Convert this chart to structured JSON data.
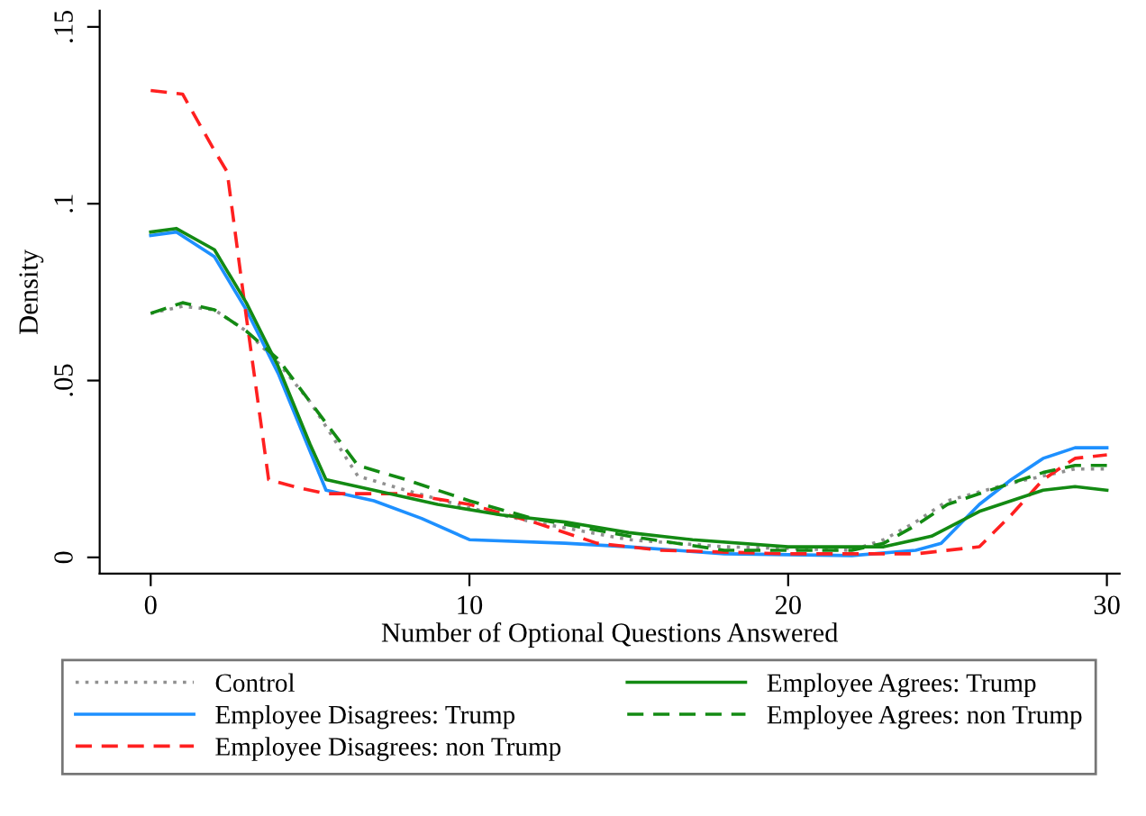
{
  "chart_data": {
    "type": "line",
    "xlabel": "Number of Optional Questions Answered",
    "ylabel": "Density",
    "xlim": [
      -1.6,
      30.4
    ],
    "ylim": [
      -0.0046,
      0.1546
    ],
    "xticks": [
      0,
      10,
      20,
      30
    ],
    "yticks": [
      {
        "value": 0,
        "label": "0"
      },
      {
        "value": 0.05,
        "label": ".05"
      },
      {
        "value": 0.1,
        "label": ".1"
      },
      {
        "value": 0.15,
        "label": ".15"
      }
    ],
    "grid": false,
    "legend": "bottom",
    "marker": "none",
    "series": [
      {
        "name": "Control",
        "color": "#909090",
        "line_style": "dotted",
        "x": [
          0,
          1,
          2,
          3,
          4,
          5,
          6,
          6.5,
          8,
          10,
          12,
          15,
          18,
          22,
          23,
          24,
          25,
          27,
          28,
          29,
          30
        ],
        "values": [
          0.069,
          0.071,
          0.07,
          0.064,
          0.055,
          0.044,
          0.03,
          0.023,
          0.019,
          0.014,
          0.01,
          0.005,
          0.003,
          0.002,
          0.005,
          0.01,
          0.016,
          0.021,
          0.023,
          0.025,
          0.025
        ]
      },
      {
        "name": "Employee Disagrees: Trump",
        "color": "#1e90ff",
        "line_style": "solid",
        "x": [
          0,
          0.8,
          2,
          3,
          4,
          5,
          5.5,
          7,
          8.5,
          10,
          13,
          15,
          18,
          22,
          24,
          24.8,
          26,
          27,
          28,
          29,
          30
        ],
        "values": [
          0.091,
          0.092,
          0.085,
          0.07,
          0.052,
          0.03,
          0.019,
          0.016,
          0.011,
          0.005,
          0.004,
          0.003,
          0.001,
          0.0005,
          0.002,
          0.004,
          0.015,
          0.022,
          0.028,
          0.031,
          0.031
        ]
      },
      {
        "name": "Employee Disagrees: non Trump",
        "color": "#ff2020",
        "line_style": "dashed",
        "x": [
          0,
          1,
          2,
          2.4,
          3,
          3.7,
          4.5,
          5.5,
          8,
          10,
          12,
          14,
          16,
          20,
          24,
          26,
          27,
          28,
          29,
          30
        ],
        "values": [
          0.132,
          0.131,
          0.115,
          0.109,
          0.068,
          0.022,
          0.02,
          0.018,
          0.018,
          0.015,
          0.01,
          0.004,
          0.002,
          0.001,
          0.001,
          0.003,
          0.012,
          0.022,
          0.028,
          0.029
        ]
      },
      {
        "name": "Employee Agrees: Trump",
        "color": "#138a13",
        "line_style": "solid",
        "x": [
          0,
          0.8,
          2,
          3,
          4,
          5,
          5.5,
          7,
          9,
          11,
          13,
          15,
          17,
          20,
          23,
          24.5,
          26,
          27,
          28,
          29,
          30
        ],
        "values": [
          0.092,
          0.093,
          0.087,
          0.072,
          0.054,
          0.032,
          0.022,
          0.019,
          0.015,
          0.012,
          0.01,
          0.007,
          0.005,
          0.003,
          0.003,
          0.006,
          0.013,
          0.016,
          0.019,
          0.02,
          0.019
        ]
      },
      {
        "name": "Employee Agrees: non Trump",
        "color": "#138a13",
        "line_style": "dashed",
        "x": [
          0,
          1,
          2,
          3,
          4,
          5,
          6,
          6.5,
          8,
          10,
          12,
          15,
          18,
          22,
          23,
          24,
          25,
          27,
          28,
          29,
          30
        ],
        "values": [
          0.069,
          0.072,
          0.07,
          0.064,
          0.056,
          0.044,
          0.032,
          0.026,
          0.022,
          0.016,
          0.011,
          0.006,
          0.002,
          0.002,
          0.004,
          0.009,
          0.015,
          0.021,
          0.024,
          0.026,
          0.026
        ]
      }
    ]
  }
}
